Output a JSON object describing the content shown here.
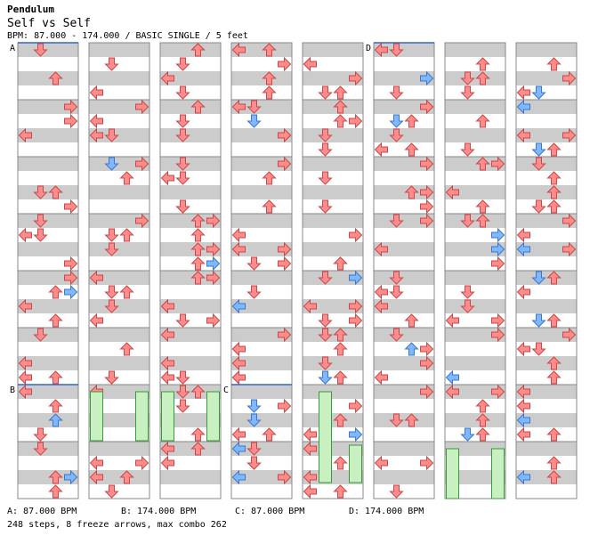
{
  "song": {
    "title": "Pendulum"
  },
  "chart": {
    "title": "Self vs Self",
    "info": "BPM: 87.000 - 174.000 / BASIC SINGLE / 5 feet",
    "section_markers": [
      "A",
      "B",
      "C",
      "D"
    ],
    "bpm_legend": [
      "A: 87.000 BPM",
      "B: 174.000 BPM",
      "C: 87.000 BPM",
      "D: 174.000 BPM"
    ],
    "summary": "248 steps, 8 freeze arrows, max combo 262",
    "columns": 8,
    "measures_per_column": 8,
    "colors": {
      "band": "#cccccc",
      "border": "#888888",
      "arrow_red": "#ff8c8c",
      "arrow_blue": "#80b8ff",
      "freeze_green": "#c8f0c0",
      "marker_line": "#3366cc"
    }
  }
}
